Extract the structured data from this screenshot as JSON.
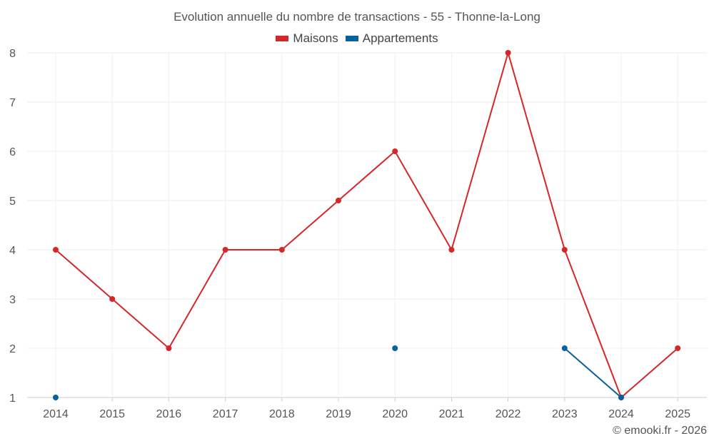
{
  "chart_data": {
    "type": "line",
    "title": "Evolution annuelle du nombre de transactions - 55 - Thonne-la-Long",
    "categories": [
      "2014",
      "2015",
      "2016",
      "2017",
      "2018",
      "2019",
      "2020",
      "2021",
      "2022",
      "2023",
      "2024",
      "2025"
    ],
    "series": [
      {
        "name": "Maisons",
        "color": "#d62728",
        "values": [
          4,
          3,
          2,
          4,
          4,
          5,
          6,
          4,
          8,
          4,
          1,
          2
        ]
      },
      {
        "name": "Appartements",
        "color": "#08619d",
        "values": [
          1,
          null,
          null,
          null,
          null,
          null,
          2,
          null,
          null,
          2,
          1,
          null
        ]
      }
    ],
    "ylim": [
      1,
      8
    ],
    "yticks": [
      "1",
      "2",
      "3",
      "4",
      "5",
      "6",
      "7",
      "8"
    ],
    "xlabel": "",
    "ylabel": "",
    "grid": true,
    "legend": "top-center"
  },
  "credit": "© emooki.fr - 2026"
}
